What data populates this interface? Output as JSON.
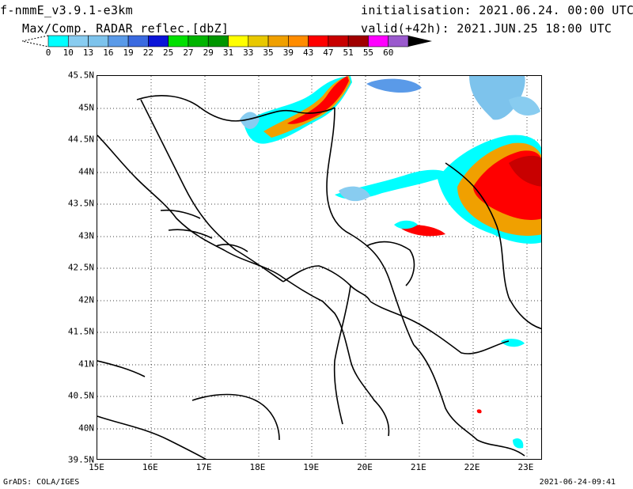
{
  "header": {
    "model": "f-nmmE_v3.9.1-e3km",
    "product": "Max/Comp. RADAR reflec.[dbZ]",
    "init": "initialisation: 2021.06.24. 00:00 UTC",
    "valid": "valid(+42h): 2021.JUN.25 18:00 UTC"
  },
  "colorbar": {
    "labels": [
      "0",
      "10",
      "13",
      "16",
      "19",
      "22",
      "25",
      "27",
      "29",
      "31",
      "33",
      "35",
      "39",
      "43",
      "47",
      "51",
      "55",
      "60"
    ],
    "colors": [
      "#00ffff",
      "#88ccf0",
      "#7dc3ec",
      "#5a9ae8",
      "#3a6ae0",
      "#0a14d8",
      "#00e000",
      "#00b400",
      "#009600",
      "#ffff00",
      "#e8c800",
      "#f0a000",
      "#ff8c00",
      "#ff0000",
      "#c80000",
      "#a00000",
      "#ff00ff",
      "#9a5acd"
    ]
  },
  "axes": {
    "lat_labels": [
      "45.5N",
      "45N",
      "44.5N",
      "44N",
      "43.5N",
      "43N",
      "42.5N",
      "42N",
      "41.5N",
      "41N",
      "40.5N",
      "40N",
      "39.5N"
    ],
    "lon_labels": [
      "15E",
      "16E",
      "17E",
      "18E",
      "19E",
      "20E",
      "21E",
      "22E",
      "23E"
    ]
  },
  "footer": {
    "left": "GrADS: COLA/IGES",
    "right": "2021-06-24-09:41"
  }
}
